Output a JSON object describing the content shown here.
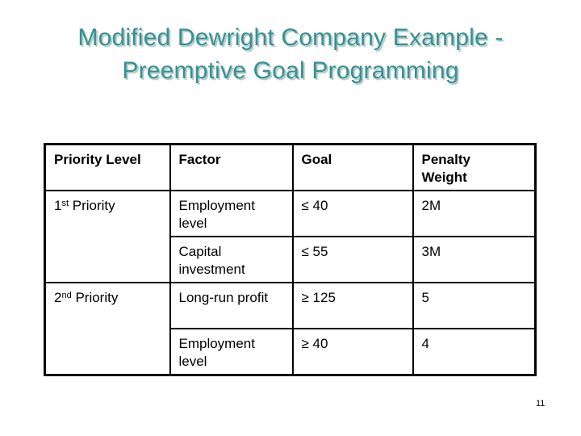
{
  "slide": {
    "title": {
      "line1": "Modified Dewright Company Example -",
      "line2": "Preemptive Goal Programming",
      "color": "#2d9595",
      "shadow_color": "#bfbfbf"
    },
    "background_color": "#ffffff",
    "page_number": "11"
  },
  "table": {
    "border_color": "#000000",
    "headers": {
      "priority_level": "Priority Level",
      "factor": "Factor",
      "goal": "Goal",
      "penalty_weight": "Penalty\nWeight"
    },
    "groups": [
      {
        "priority": {
          "number": "1",
          "ordinal_suffix": "st",
          "label": " Priority"
        },
        "rows": [
          {
            "factor": "Employment\nlevel",
            "goal": "≤ 40",
            "penalty_weight": "2M"
          },
          {
            "factor": "Capital\ninvestment",
            "goal": "≤ 55",
            "penalty_weight": "3M"
          }
        ]
      },
      {
        "priority": {
          "number": "2",
          "ordinal_suffix": "nd",
          "label": " Priority"
        },
        "rows": [
          {
            "factor": "Long-run profit",
            "goal": "≥ 125",
            "penalty_weight": "5"
          },
          {
            "factor": "Employment\nlevel",
            "goal": "≥ 40",
            "penalty_weight": "4"
          }
        ]
      }
    ]
  }
}
